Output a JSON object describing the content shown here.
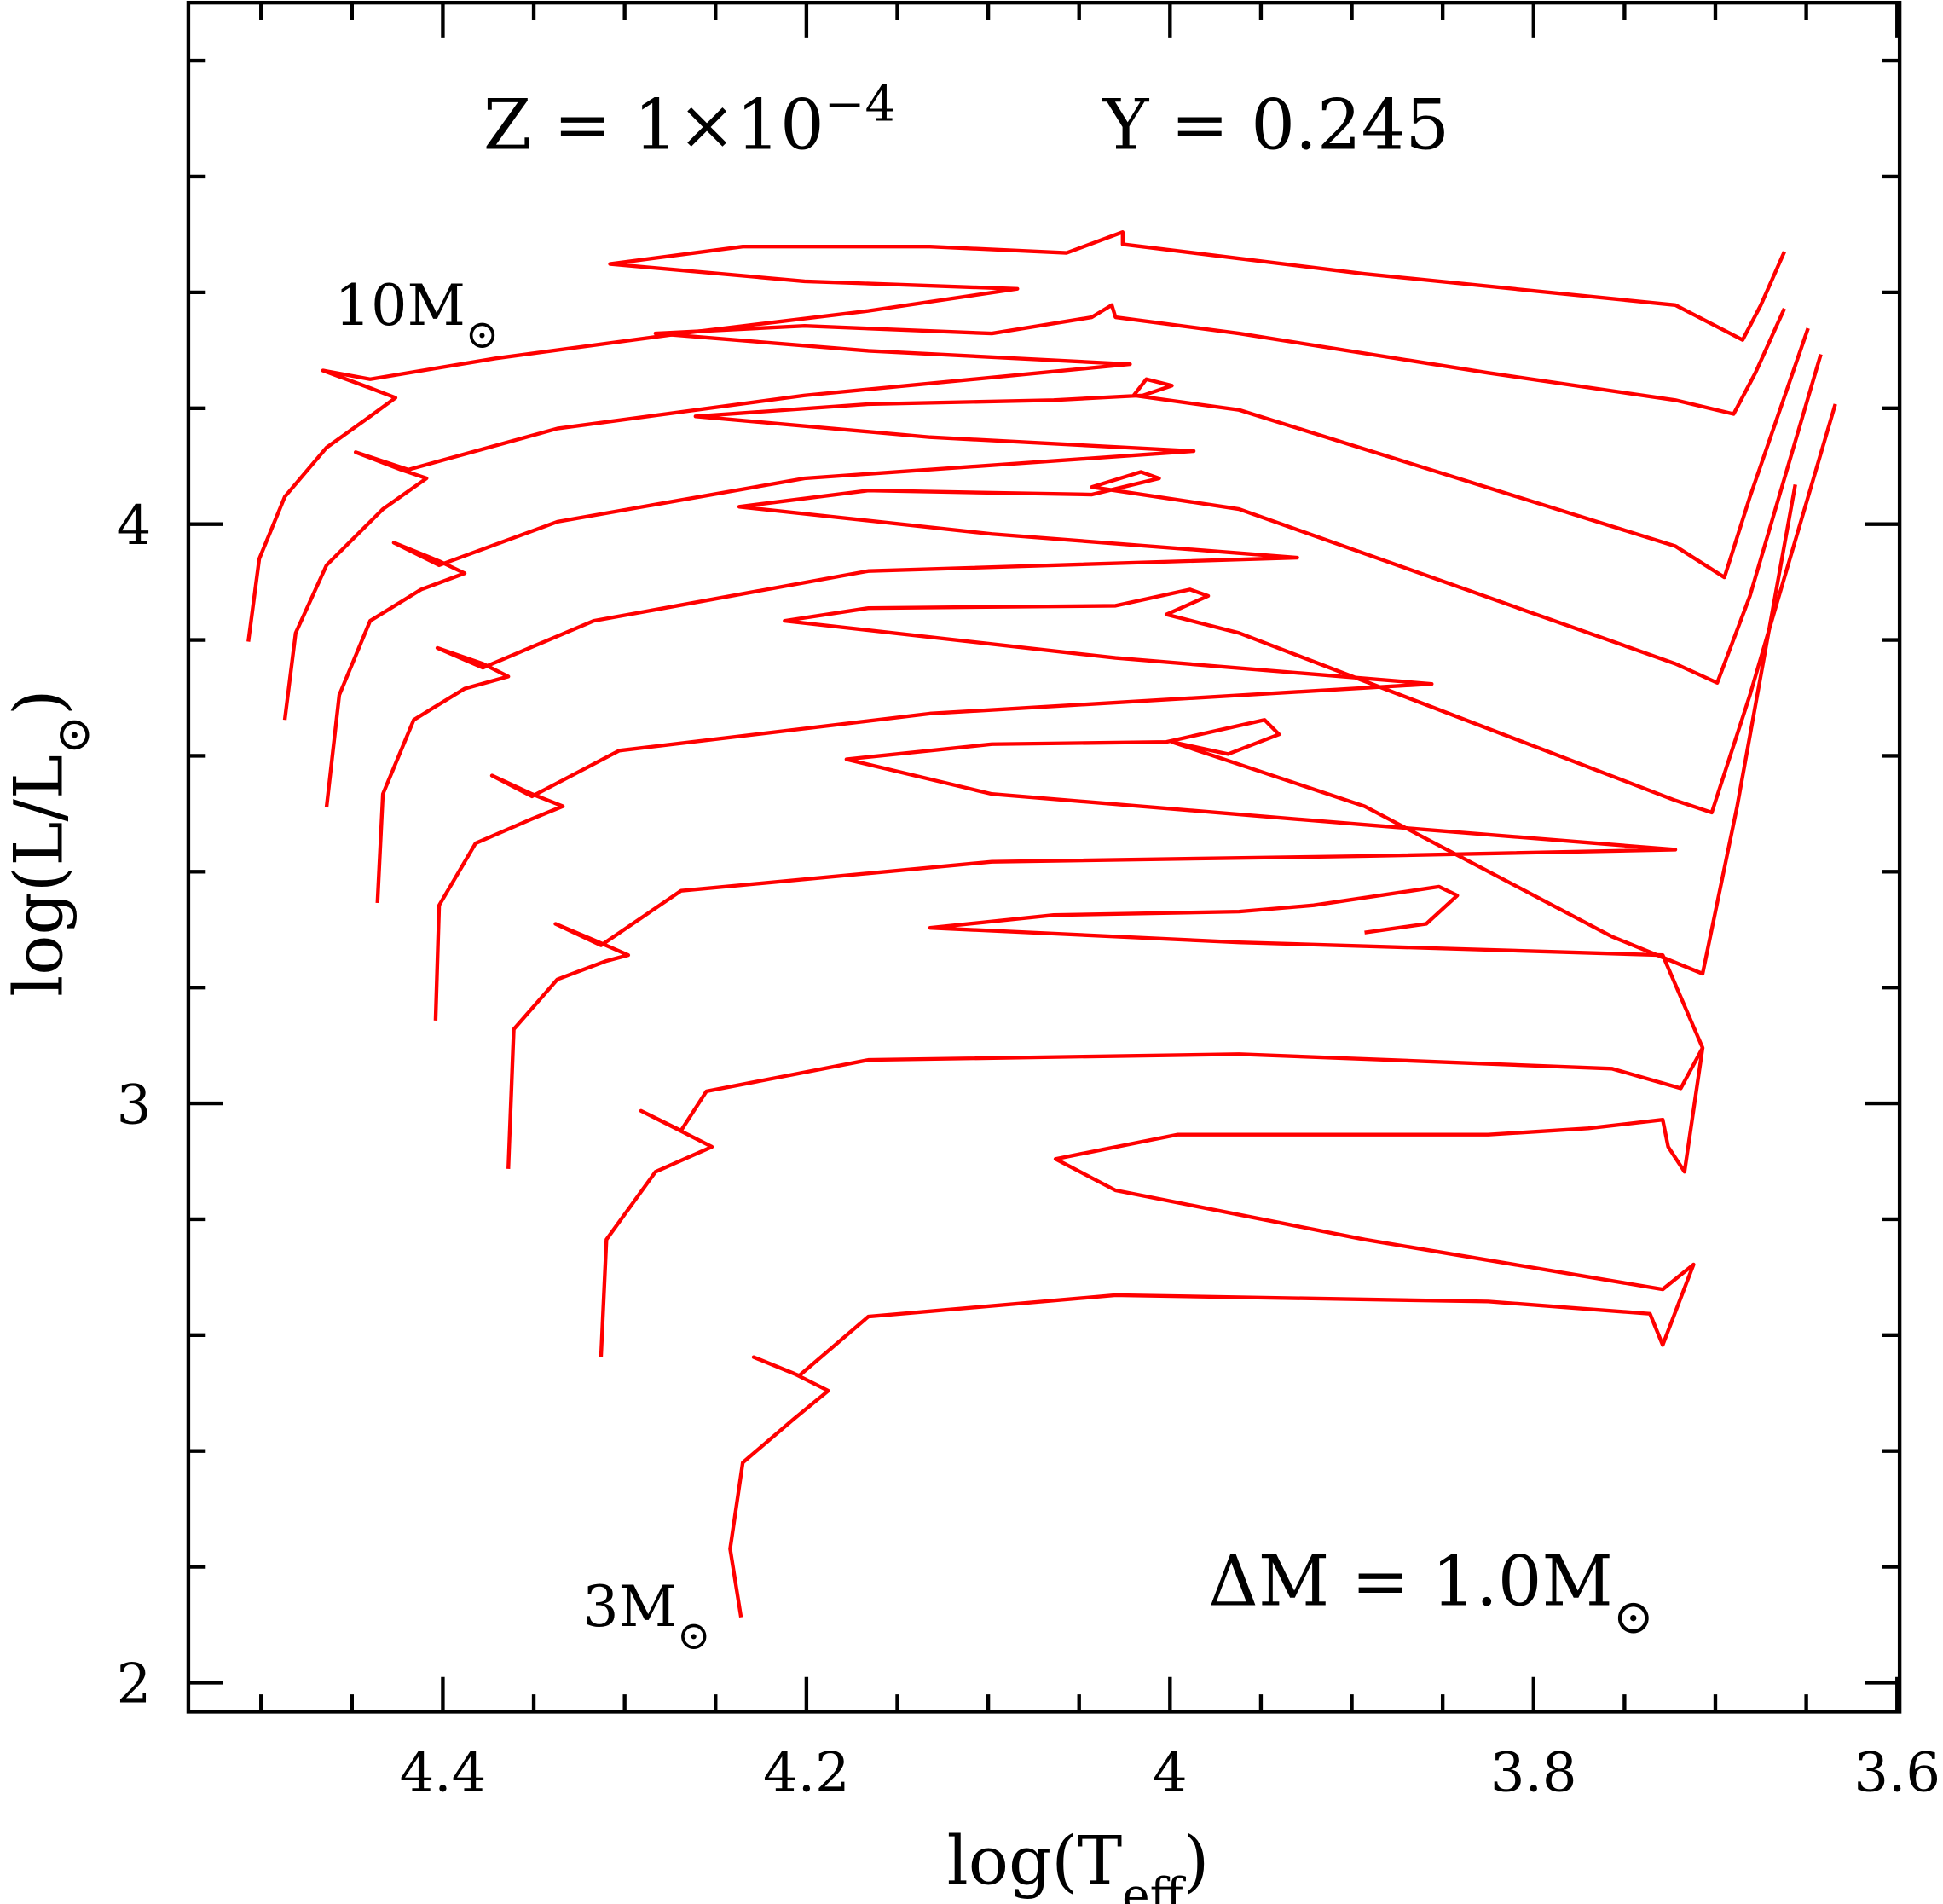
{
  "chart_data": {
    "type": "line",
    "xlabel": [
      "log(T",
      "eff",
      ")"
    ],
    "ylabel": [
      "log(L/L",
      "⊙",
      ")"
    ],
    "xlim": [
      4.54,
      3.6
    ],
    "ylim": [
      1.95,
      4.9
    ],
    "xticks": [
      4.4,
      4.2,
      4,
      3.8,
      3.6
    ],
    "yticks": [
      2,
      3,
      4
    ],
    "xminorticks": [
      4.5,
      4.45,
      4.35,
      4.3,
      4.25,
      4.15,
      4.1,
      4.05,
      3.95,
      3.9,
      3.85,
      3.75,
      3.7,
      3.65
    ],
    "yminorticks": [
      2.2,
      2.4,
      2.6,
      2.8,
      3.2,
      3.4,
      3.6,
      3.8,
      4.2,
      4.4,
      4.6,
      4.8
    ],
    "annotations": [
      {
        "text": [
          "Z = 1×10",
          "−4"
        ],
        "script": "sup"
      },
      {
        "text": [
          "Y = 0.245"
        ],
        "script": "sup"
      },
      {
        "text": [
          "10M",
          "⊙"
        ],
        "script": "sub"
      },
      {
        "text": [
          "3M",
          "⊙"
        ],
        "script": "sub"
      },
      {
        "text": [
          "ΔM = 1.0M",
          "⊙"
        ],
        "script": "sub"
      }
    ],
    "series": [
      {
        "color": "#ff0000",
        "x": [
          4.507,
          4.501,
          4.487,
          4.464,
          4.44,
          4.426,
          4.44,
          4.466,
          4.44,
          4.371,
          4.269,
          4.166,
          4.084,
          4.201,
          4.308,
          4.235,
          4.132,
          4.057,
          4.026,
          4.026,
          3.893,
          3.722,
          3.685,
          3.675,
          3.662
        ],
        "values": [
          3.797,
          3.94,
          4.047,
          4.132,
          4.186,
          4.218,
          4.235,
          4.265,
          4.25,
          4.286,
          4.329,
          4.368,
          4.406,
          4.419,
          4.449,
          4.479,
          4.479,
          4.468,
          4.504,
          4.483,
          4.432,
          4.378,
          4.318,
          4.378,
          4.47
        ]
      },
      {
        "color": "#ff0000",
        "x": [
          4.487,
          4.481,
          4.464,
          4.433,
          4.409,
          4.423,
          4.448,
          4.419,
          4.337,
          4.201,
          4.022,
          4.166,
          4.283,
          4.201,
          4.098,
          4.043,
          4.032,
          4.03,
          3.962,
          3.825,
          3.722,
          3.69,
          3.678,
          3.662
        ],
        "values": [
          3.662,
          3.812,
          3.929,
          4.026,
          4.079,
          4.094,
          4.124,
          4.094,
          4.165,
          4.222,
          4.276,
          4.299,
          4.329,
          4.342,
          4.329,
          4.357,
          4.378,
          4.357,
          4.329,
          4.261,
          4.214,
          4.19,
          4.261,
          4.372
        ]
      },
      {
        "color": "#ff0000",
        "x": [
          4.464,
          4.457,
          4.44,
          4.412,
          4.388,
          4.402,
          4.427,
          4.402,
          4.337,
          4.201,
          3.987,
          4.132,
          4.261,
          4.166,
          4.064,
          4.015,
          3.999,
          4.013,
          4.02,
          3.962,
          3.722,
          3.695,
          3.681,
          3.649
        ],
        "values": [
          3.511,
          3.705,
          3.833,
          3.887,
          3.915,
          3.936,
          3.968,
          3.929,
          4.004,
          4.079,
          4.126,
          4.15,
          4.186,
          4.207,
          4.214,
          4.222,
          4.239,
          4.25,
          4.222,
          4.197,
          3.962,
          3.908,
          4.047,
          4.338
        ]
      },
      {
        "color": "#ff0000",
        "x": [
          4.436,
          4.433,
          4.416,
          4.388,
          4.364,
          4.378,
          4.403,
          4.378,
          4.317,
          4.166,
          3.93,
          4.098,
          4.237,
          4.166,
          4.043,
          4.006,
          4.016,
          4.043,
          3.962,
          3.722,
          3.699,
          3.681,
          3.642
        ],
        "values": [
          3.346,
          3.534,
          3.662,
          3.716,
          3.737,
          3.759,
          3.786,
          3.752,
          3.833,
          3.919,
          3.942,
          3.983,
          4.03,
          4.058,
          4.051,
          4.079,
          4.09,
          4.064,
          4.026,
          3.759,
          3.726,
          3.876,
          4.293
        ]
      },
      {
        "color": "#ff0000",
        "x": [
          4.404,
          4.402,
          4.382,
          4.351,
          4.334,
          4.351,
          4.373,
          4.351,
          4.303,
          4.132,
          3.856,
          4.03,
          4.212,
          4.166,
          4.03,
          3.989,
          3.979,
          4.002,
          3.962,
          3.722,
          3.702,
          3.681,
          3.634
        ],
        "values": [
          3.143,
          3.342,
          3.449,
          3.491,
          3.513,
          3.534,
          3.566,
          3.53,
          3.609,
          3.673,
          3.724,
          3.769,
          3.833,
          3.855,
          3.859,
          3.887,
          3.876,
          3.844,
          3.812,
          3.523,
          3.502,
          3.705,
          4.207
        ]
      },
      {
        "color": "#ff0000",
        "x": [
          4.364,
          4.361,
          4.337,
          4.31,
          4.298,
          4.317,
          4.338,
          4.313,
          4.269,
          4.098,
          3.893,
          3.722,
          3.893,
          4.098,
          4.178,
          4.098,
          4.002,
          3.948,
          3.94,
          3.968,
          3.999,
          3.893,
          3.757,
          3.707,
          3.688,
          3.656
        ],
        "values": [
          2.887,
          3.128,
          3.214,
          3.246,
          3.256,
          3.282,
          3.31,
          3.273,
          3.367,
          3.417,
          3.427,
          3.438,
          3.481,
          3.534,
          3.594,
          3.62,
          3.624,
          3.662,
          3.637,
          3.603,
          3.624,
          3.513,
          3.288,
          3.224,
          3.513,
          4.068
        ]
      },
      {
        "color": "#ff0000",
        "x": [
          4.313,
          4.31,
          4.283,
          4.252,
          4.272,
          4.291,
          4.269,
          4.255,
          4.166,
          3.962,
          3.757,
          3.719,
          3.707,
          3.729,
          3.962,
          4.132,
          4.064,
          3.962,
          3.921,
          3.852,
          3.842,
          3.859,
          3.893
        ],
        "values": [
          2.562,
          2.765,
          2.882,
          2.925,
          2.957,
          2.987,
          2.953,
          3.021,
          3.075,
          3.085,
          3.06,
          3.026,
          3.096,
          3.256,
          3.278,
          3.303,
          3.325,
          3.331,
          3.342,
          3.374,
          3.359,
          3.31,
          3.295
        ]
      },
      {
        "color": "#ff0000",
        "x": [
          4.236,
          4.242,
          4.235,
          4.207,
          4.188,
          4.207,
          4.229,
          4.204,
          4.166,
          4.03,
          3.825,
          3.736,
          3.729,
          3.712,
          3.729,
          3.893,
          4.03,
          4.063,
          3.996,
          3.825,
          3.77,
          3.729,
          3.726,
          3.717,
          3.707
        ],
        "values": [
          2.113,
          2.231,
          2.38,
          2.455,
          2.504,
          2.534,
          2.562,
          2.53,
          2.632,
          2.669,
          2.658,
          2.637,
          2.583,
          2.722,
          2.679,
          2.765,
          2.85,
          2.904,
          2.946,
          2.946,
          2.957,
          2.972,
          2.925,
          2.882,
          3.096
        ]
      }
    ]
  }
}
